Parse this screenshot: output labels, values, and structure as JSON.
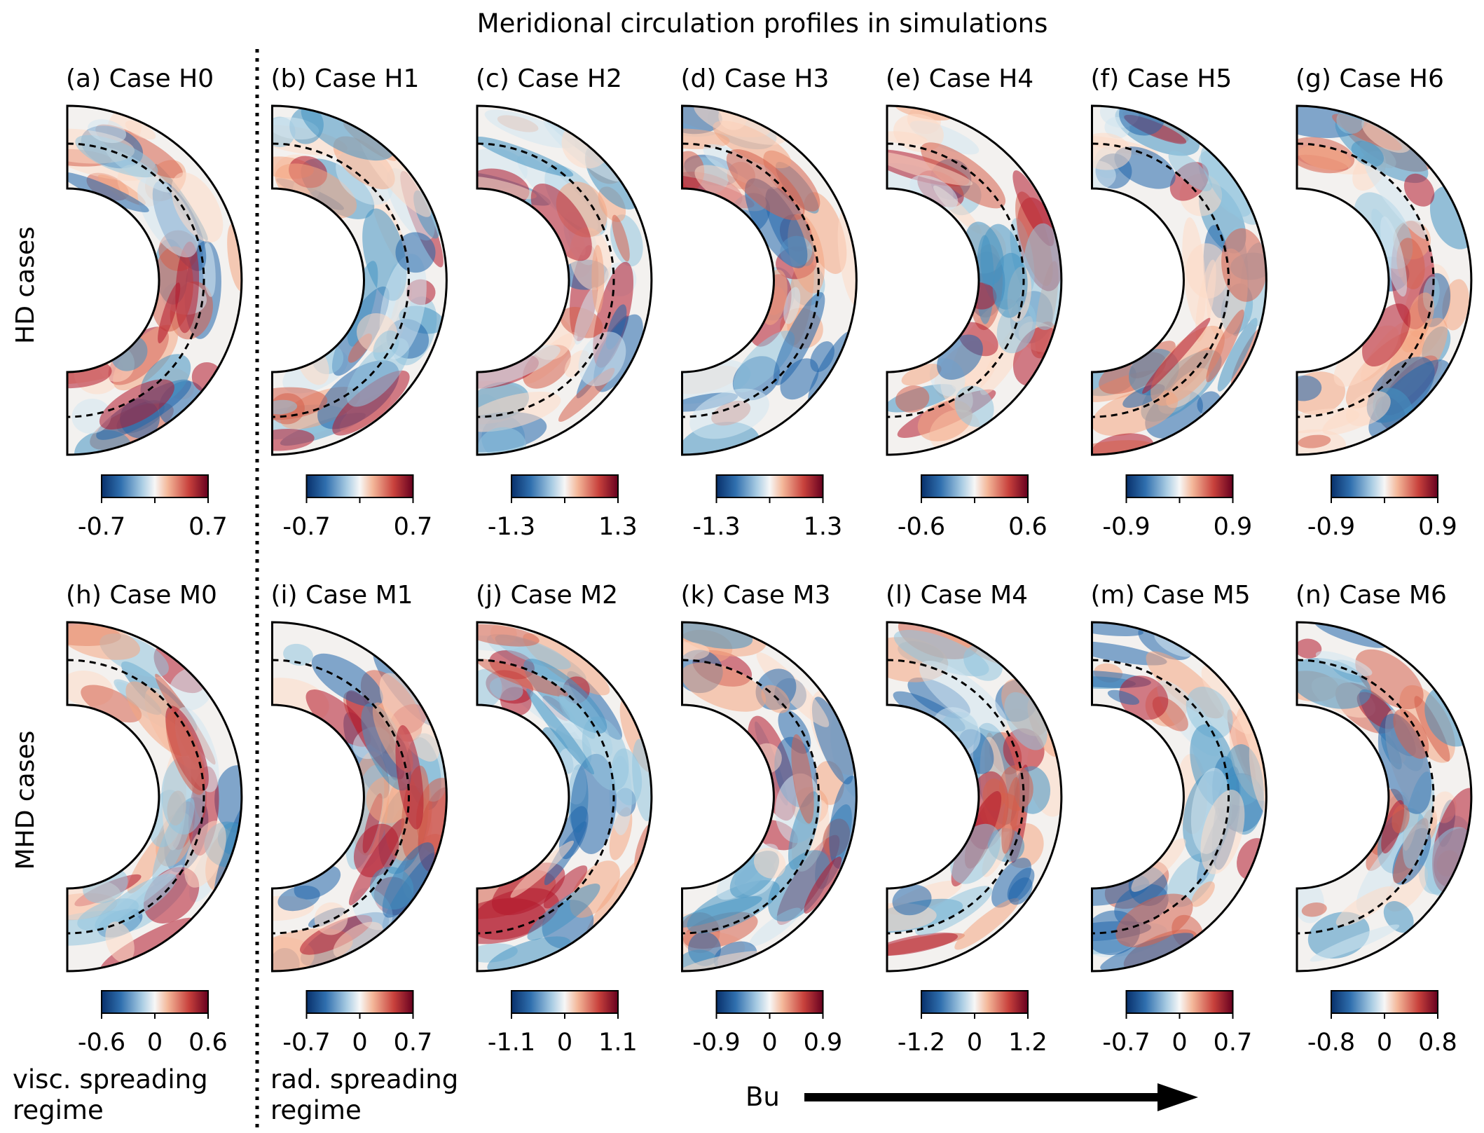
{
  "figure": {
    "title": "Meridional circulation profiles in simulations",
    "row_labels": [
      "HD cases",
      "MHD cases"
    ],
    "regime_labels": [
      {
        "line1": "visc. spreading",
        "line2": "regime"
      },
      {
        "line1": "rad. spreading",
        "line2": "regime"
      }
    ],
    "arrow_label": "Bu",
    "colormap": {
      "negative": "#08306b",
      "mid_negative": "#6aa0cc",
      "center": "#f7f7f7",
      "mid_positive": "#f4a582",
      "positive": "#67001f"
    }
  },
  "chart_data": [
    {
      "type": "heatmap",
      "panel": "(a)",
      "title": "(a) Case H0",
      "row": "HD",
      "colorbar": {
        "min": -0.7,
        "max": 0.7,
        "ticks": [
          "-0.7",
          "0.7"
        ]
      }
    },
    {
      "type": "heatmap",
      "panel": "(b)",
      "title": "(b) Case H1",
      "row": "HD",
      "colorbar": {
        "min": -0.7,
        "max": 0.7,
        "ticks": [
          "-0.7",
          "0.7"
        ]
      }
    },
    {
      "type": "heatmap",
      "panel": "(c)",
      "title": "(c) Case H2",
      "row": "HD",
      "colorbar": {
        "min": -1.3,
        "max": 1.3,
        "ticks": [
          "-1.3",
          "1.3"
        ]
      }
    },
    {
      "type": "heatmap",
      "panel": "(d)",
      "title": "(d) Case H3",
      "row": "HD",
      "colorbar": {
        "min": -1.3,
        "max": 1.3,
        "ticks": [
          "-1.3",
          "1.3"
        ]
      }
    },
    {
      "type": "heatmap",
      "panel": "(e)",
      "title": "(e) Case H4",
      "row": "HD",
      "colorbar": {
        "min": -0.6,
        "max": 0.6,
        "ticks": [
          "-0.6",
          "0.6"
        ]
      }
    },
    {
      "type": "heatmap",
      "panel": "(f)",
      "title": "(f) Case H5",
      "row": "HD",
      "colorbar": {
        "min": -0.9,
        "max": 0.9,
        "ticks": [
          "-0.9",
          "0.9"
        ]
      }
    },
    {
      "type": "heatmap",
      "panel": "(g)",
      "title": "(g) Case H6",
      "row": "HD",
      "colorbar": {
        "min": -0.9,
        "max": 0.9,
        "ticks": [
          "-0.9",
          "0.9"
        ]
      }
    },
    {
      "type": "heatmap",
      "panel": "(h)",
      "title": "(h) Case M0",
      "row": "MHD",
      "colorbar": {
        "min": -0.6,
        "max": 0.6,
        "ticks": [
          "-0.6",
          "0",
          "0.6"
        ]
      }
    },
    {
      "type": "heatmap",
      "panel": "(i)",
      "title": "(i) Case M1",
      "row": "MHD",
      "colorbar": {
        "min": -0.7,
        "max": 0.7,
        "ticks": [
          "-0.7",
          "0",
          "0.7"
        ]
      }
    },
    {
      "type": "heatmap",
      "panel": "(j)",
      "title": "(j) Case M2",
      "row": "MHD",
      "colorbar": {
        "min": -1.1,
        "max": 1.1,
        "ticks": [
          "-1.1",
          "0",
          "1.1"
        ]
      }
    },
    {
      "type": "heatmap",
      "panel": "(k)",
      "title": "(k) Case M3",
      "row": "MHD",
      "colorbar": {
        "min": -0.9,
        "max": 0.9,
        "ticks": [
          "-0.9",
          "0",
          "0.9"
        ]
      }
    },
    {
      "type": "heatmap",
      "panel": "(l)",
      "title": "(l) Case M4",
      "row": "MHD",
      "colorbar": {
        "min": -1.2,
        "max": 1.2,
        "ticks": [
          "-1.2",
          "0",
          "1.2"
        ]
      }
    },
    {
      "type": "heatmap",
      "panel": "(m)",
      "title": "(m) Case M5",
      "row": "MHD",
      "colorbar": {
        "min": -0.7,
        "max": 0.7,
        "ticks": [
          "-0.7",
          "0",
          "0.7"
        ]
      }
    },
    {
      "type": "heatmap",
      "panel": "(n)",
      "title": "(n) Case M6",
      "row": "MHD",
      "colorbar": {
        "min": -0.8,
        "max": 0.8,
        "ticks": [
          "-0.8",
          "0",
          "0.8"
        ]
      }
    }
  ]
}
